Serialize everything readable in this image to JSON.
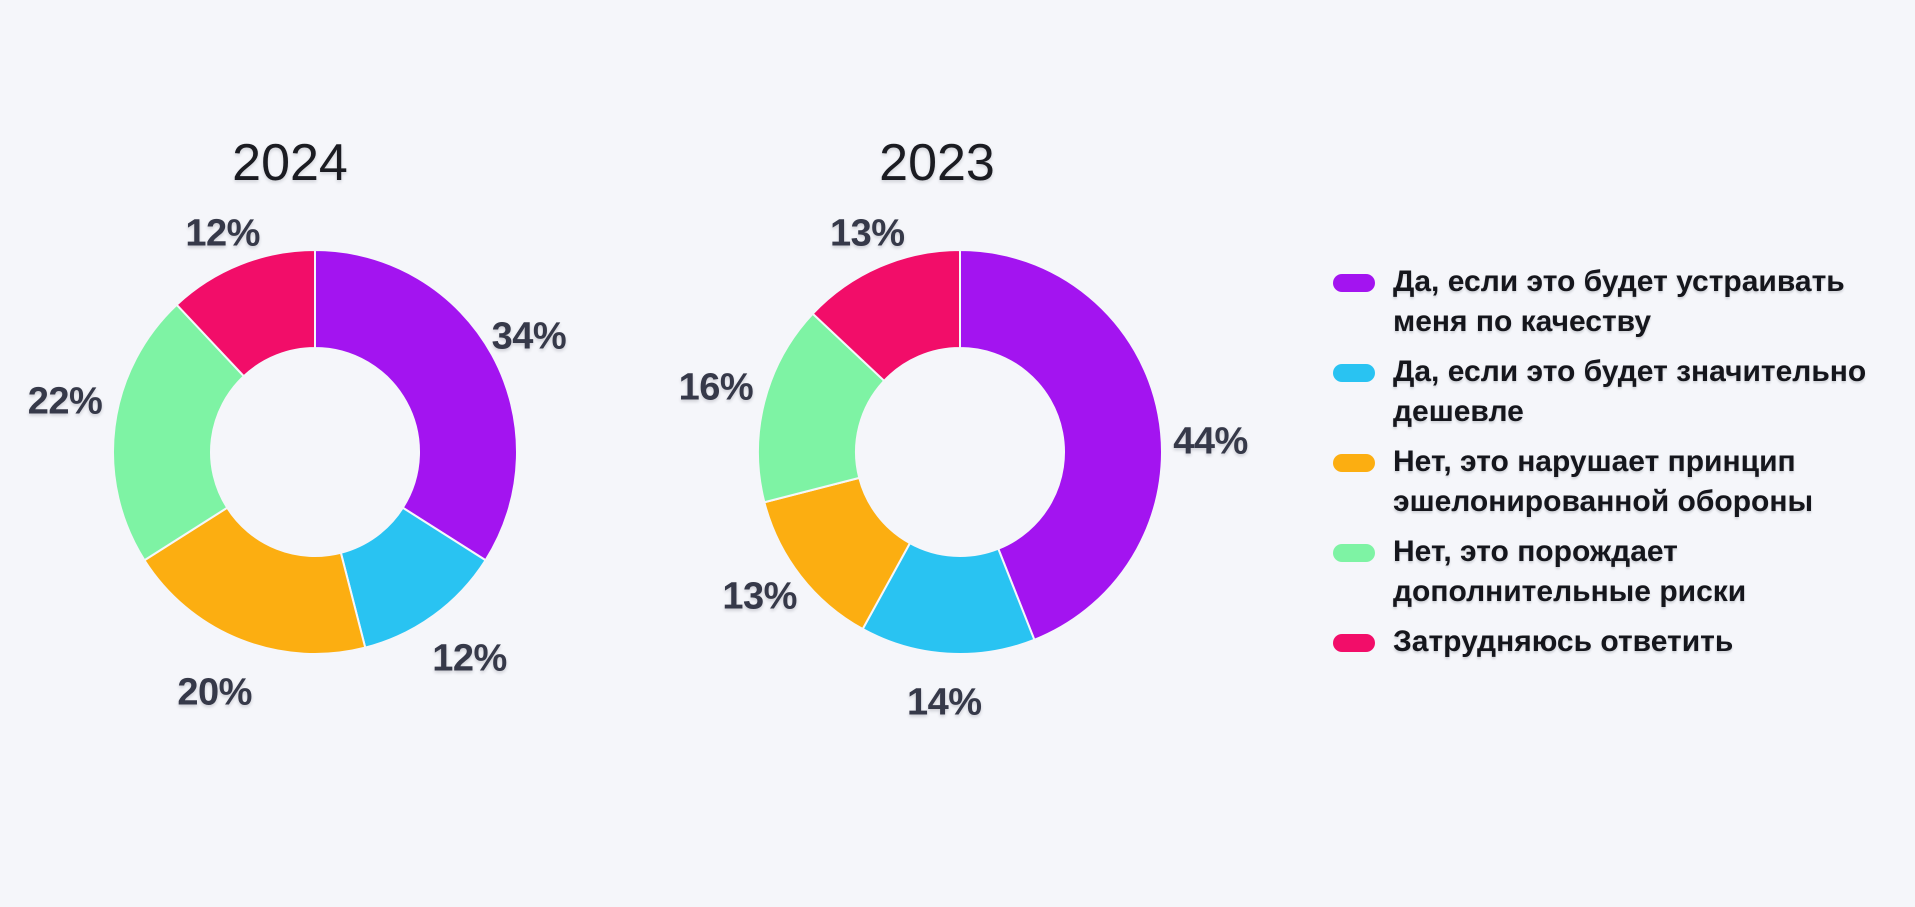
{
  "page": {
    "background": "#F5F6FA"
  },
  "palette": {
    "purple": "#A314F0",
    "cyan": "#29C3F2",
    "orange": "#FCAE11",
    "green": "#7EF3A4",
    "pink": "#F20D69",
    "title_text": "#1B1C22",
    "percent_text": "#363949",
    "legend_text": "#15161C"
  },
  "legend": {
    "items": [
      {
        "label": "Да, если это будет устраивать\nменя по качеству",
        "color": "#A314F0"
      },
      {
        "label": "Да, если это будет значительно\nдешевле",
        "color": "#29C3F2"
      },
      {
        "label": "Нет, это нарушает принцип\nэшелонированной обороны",
        "color": "#FCAE11"
      },
      {
        "label": "Нет, это порождает\nдополнительные риски",
        "color": "#7EF3A4"
      },
      {
        "label": "Затрудняюсь ответить",
        "color": "#F20D69"
      }
    ]
  },
  "chart_data": [
    {
      "type": "pie",
      "donut": true,
      "title": "2024",
      "categories": [
        "Да, если это будет устраивать меня по качеству",
        "Да, если это будет значительно дешевле",
        "Нет, это нарушает принцип эшелонированной обороны",
        "Нет, это порождает дополнительные риски",
        "Затрудняюсь ответить"
      ],
      "values": [
        34,
        12,
        20,
        22,
        12
      ],
      "labels": [
        "34%",
        "12%",
        "20%",
        "22%",
        "12%"
      ],
      "colors": [
        "#A314F0",
        "#29C3F2",
        "#FCAE11",
        "#7EF3A4",
        "#F20D69"
      ],
      "unit": "%",
      "start_angle": 0,
      "direction": "clockwise",
      "legend_position": "right"
    },
    {
      "type": "pie",
      "donut": true,
      "title": "2023",
      "categories": [
        "Да, если это будет устраивать меня по качеству",
        "Да, если это будет значительно дешевле",
        "Нет, это нарушает принцип эшелонированной обороны",
        "Нет, это порождает дополнительные риски",
        "Затрудняюсь ответить"
      ],
      "values": [
        44,
        14,
        13,
        16,
        13
      ],
      "labels": [
        "44%",
        "14%",
        "13%",
        "16%",
        "13%"
      ],
      "colors": [
        "#A314F0",
        "#29C3F2",
        "#FCAE11",
        "#7EF3A4",
        "#F20D69"
      ],
      "unit": "%",
      "start_angle": 0,
      "direction": "clockwise",
      "legend_position": "right"
    }
  ]
}
